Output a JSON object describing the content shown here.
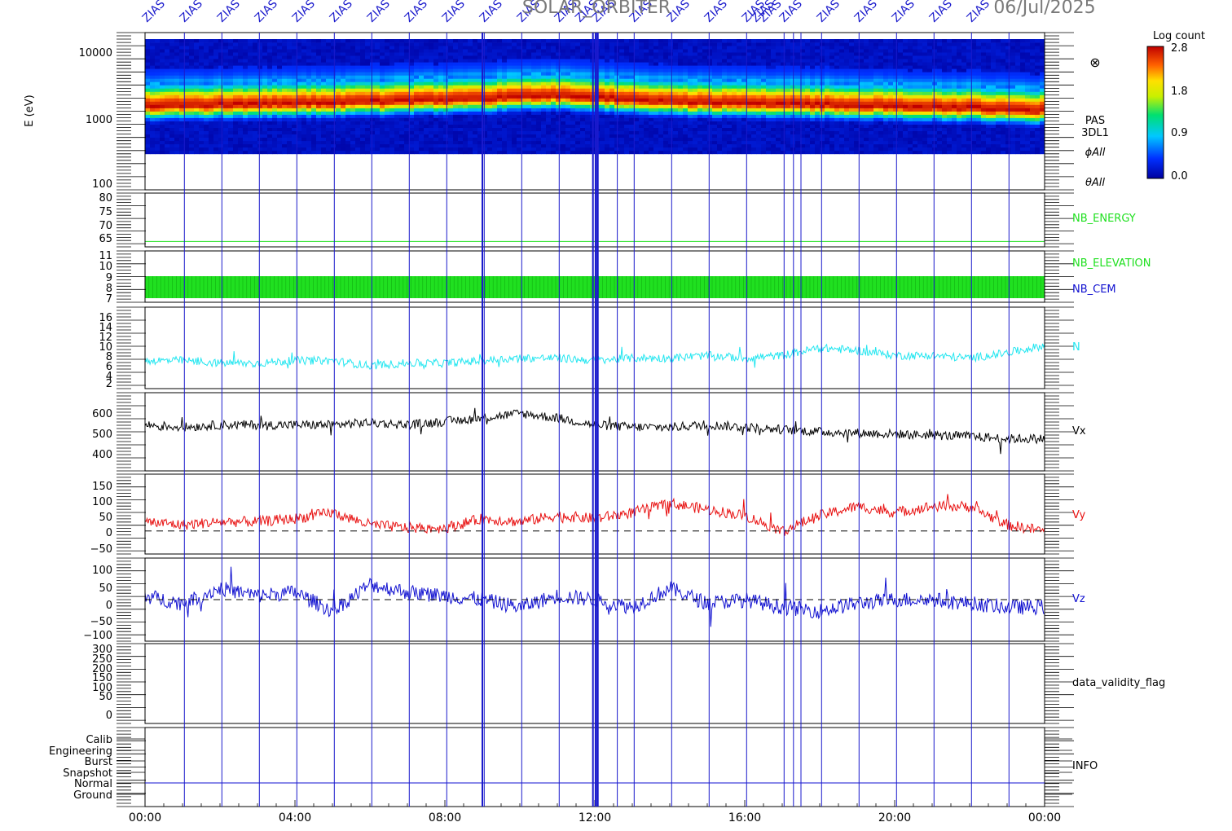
{
  "header": {
    "mission_title": "SOLAR_ORBITER",
    "date": "06/Jul/2025",
    "marker_label": "ZIAS"
  },
  "colorbar": {
    "title": "Log count",
    "ticks": [
      "2.8",
      "1.8",
      "0.9",
      "0.0"
    ],
    "range": [
      0.0,
      2.8
    ]
  },
  "panels": {
    "spectrogram": {
      "ylabel": "E (eV)",
      "ticks": [
        "10000",
        "1000",
        "100"
      ],
      "side_labels": [
        "PAS",
        "3DL1",
        "ϕAll",
        "θAll"
      ],
      "sun_symbol": "⊗"
    },
    "nb_energy": {
      "label": "NB_ENERGY",
      "ticks": [
        "80",
        "75",
        "70",
        "65"
      ]
    },
    "nb_elevation": {
      "label": "NB_ELEVATION",
      "label2": "NB_CEM",
      "ticks": [
        "11",
        "10",
        "9",
        "8",
        "7"
      ]
    },
    "density": {
      "label": "N",
      "ticks": [
        "16",
        "14",
        "12",
        "10",
        "8",
        "6",
        "4",
        "2"
      ]
    },
    "vx": {
      "label": "Vx",
      "ticks": [
        "600",
        "500",
        "400"
      ]
    },
    "vy": {
      "label": "Vy",
      "ticks": [
        "150",
        "100",
        "50",
        "0",
        "−50"
      ]
    },
    "vz": {
      "label": "Vz",
      "ticks": [
        "100",
        "50",
        "0",
        "−50",
        "−100"
      ]
    },
    "validity": {
      "label": "data_validity_flag",
      "ticks": [
        "300",
        "250",
        "200",
        "150",
        "100",
        "50",
        "0"
      ]
    },
    "info": {
      "label": "INFO",
      "ticks": [
        "Calib",
        "Engineering",
        "Burst",
        "Snapshot",
        "Normal",
        "Ground"
      ]
    }
  },
  "x_axis": {
    "ticks": [
      "00:00",
      "04:00",
      "08:00",
      "12:00",
      "16:00",
      "20:00",
      "00:00"
    ]
  },
  "colors": {
    "cyan": "#22e6f0",
    "black": "#000000",
    "red": "#e81010",
    "blue": "#1010d0",
    "green": "#20e020",
    "marker": "#1a1acc"
  },
  "chart_data": [
    {
      "type": "heatmap",
      "ylabel": "E (eV)",
      "y_scale": "log",
      "ylim": [
        100,
        15000
      ],
      "xlim": [
        0,
        24
      ],
      "peak_energy_eV": [
        1500,
        1600,
        1700,
        1900,
        2100,
        1700,
        1600,
        1500,
        1300
      ],
      "peak_time_h": [
        0,
        3,
        6,
        9,
        11,
        14,
        17,
        20,
        24
      ],
      "zlim": [
        0.0,
        2.8
      ]
    },
    {
      "type": "line",
      "name": "NB_ENERGY",
      "ylim": [
        62,
        82
      ],
      "x": [
        0,
        24
      ],
      "values": [
        64,
        64
      ]
    },
    {
      "type": "line",
      "name": "N",
      "ylim": [
        1,
        17
      ],
      "x": [
        0,
        1,
        2,
        3,
        4,
        5,
        6,
        7,
        8,
        9,
        10,
        11,
        12,
        13,
        14,
        15,
        16,
        17,
        18,
        19,
        20,
        21,
        22,
        23,
        24
      ],
      "values": [
        6.5,
        6.5,
        6.0,
        6.0,
        6.5,
        6.5,
        5.5,
        6.0,
        6.0,
        6.5,
        7.0,
        7.0,
        6.5,
        7.0,
        7.0,
        7.5,
        7.0,
        7.5,
        9.0,
        8.5,
        7.5,
        7.5,
        7.0,
        8.0,
        9.5
      ]
    },
    {
      "type": "line",
      "name": "Vx",
      "ylim": [
        340,
        680
      ],
      "x": [
        0,
        1,
        2,
        3,
        4,
        5,
        6,
        7,
        8,
        9,
        10,
        11,
        12,
        13,
        14,
        15,
        16,
        17,
        18,
        19,
        20,
        21,
        22,
        23,
        24
      ],
      "values": [
        540,
        530,
        540,
        540,
        540,
        540,
        550,
        540,
        555,
        570,
        590,
        570,
        540,
        530,
        530,
        540,
        530,
        520,
        510,
        505,
        500,
        495,
        490,
        480,
        480
      ]
    },
    {
      "type": "line",
      "name": "Vy",
      "ylim": [
        -75,
        185
      ],
      "x": [
        0,
        1,
        2,
        3,
        4,
        5,
        6,
        7,
        8,
        9,
        10,
        11,
        12,
        13,
        14,
        15,
        16,
        17,
        18,
        19,
        20,
        21,
        22,
        23,
        24
      ],
      "values": [
        30,
        20,
        30,
        30,
        40,
        60,
        20,
        10,
        10,
        40,
        30,
        50,
        40,
        60,
        90,
        70,
        50,
        0,
        50,
        80,
        60,
        80,
        80,
        20,
        0
      ]
    },
    {
      "type": "line",
      "name": "Vz",
      "ylim": [
        -110,
        110
      ],
      "x": [
        0,
        1,
        2,
        3,
        4,
        5,
        6,
        7,
        8,
        9,
        10,
        11,
        12,
        13,
        14,
        15,
        16,
        17,
        18,
        19,
        20,
        21,
        22,
        23,
        24
      ],
      "values": [
        10,
        -10,
        30,
        10,
        20,
        -30,
        40,
        20,
        10,
        0,
        -20,
        10,
        0,
        -20,
        30,
        -10,
        0,
        -20,
        -30,
        -10,
        0,
        0,
        -10,
        -20,
        -20
      ]
    }
  ]
}
